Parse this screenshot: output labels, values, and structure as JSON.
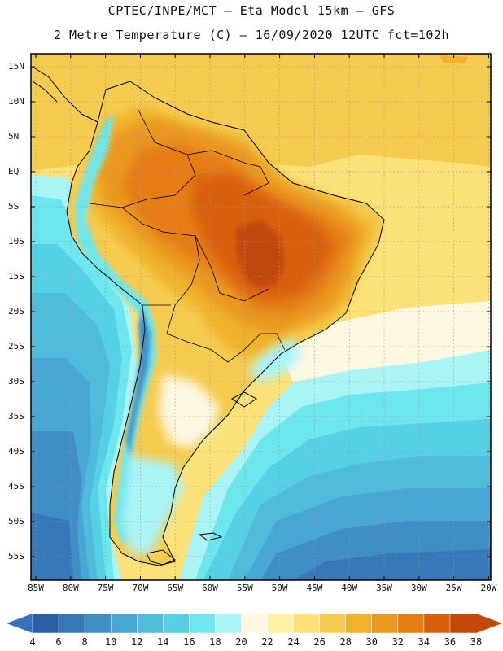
{
  "title": {
    "line1": "CPTEC/INPE/MCT –  Eta Model 15km – GFS",
    "line2": "2 Metre Temperature (C) – 16/09/2020 12UTC fct=102h"
  },
  "map": {
    "lat_labels": [
      "15N",
      "10N",
      "5N",
      "EQ",
      "5S",
      "10S",
      "15S",
      "20S",
      "25S",
      "30S",
      "35S",
      "40S",
      "45S",
      "50S",
      "55S"
    ],
    "lon_labels": [
      "85W",
      "80W",
      "75W",
      "70W",
      "65W",
      "60W",
      "55W",
      "50W",
      "45W",
      "40W",
      "35W",
      "30W",
      "25W",
      "20W"
    ]
  },
  "colorbar": {
    "labels": [
      "4",
      "6",
      "8",
      "10",
      "12",
      "14",
      "16",
      "18",
      "20",
      "22",
      "24",
      "26",
      "28",
      "30",
      "32",
      "34",
      "36",
      "38"
    ],
    "colors": [
      "#2b5fa5",
      "#3778b8",
      "#3f8fc6",
      "#48a6d4",
      "#4fbcdc",
      "#55d0e4",
      "#6ee6ee",
      "#aaf4f6",
      "#fdf8e2",
      "#fef2a4",
      "#fbe178",
      "#f6cc50",
      "#efb22a",
      "#ea9820",
      "#e57c14",
      "#d8600c",
      "#c24808"
    ],
    "low_color": "#3a6fc0",
    "high_color": "#c0480a"
  }
}
